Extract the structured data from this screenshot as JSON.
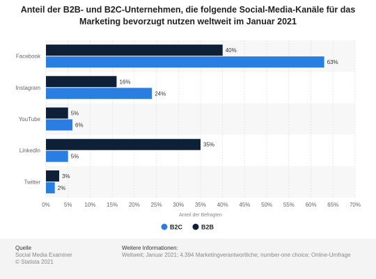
{
  "title": "Anteil der B2B- und B2C-Unternehmen, die folgende Social-Media-Kanäle für das Marketing bevorzugt nutzen weltweit im Januar 2021",
  "colors": {
    "b2c": "#2a7de1",
    "b2b": "#0e2038",
    "band": "#f7f7f7",
    "grid": "#d9d9d9",
    "axisText": "#666666"
  },
  "chart_data": {
    "type": "bar",
    "orientation": "horizontal",
    "categories": [
      "Facebook",
      "Instagram",
      "YouTube",
      "LinkedIn",
      "Twitter"
    ],
    "series": [
      {
        "name": "B2B",
        "values": [
          40,
          16,
          5,
          35,
          3
        ]
      },
      {
        "name": "B2C",
        "values": [
          63,
          24,
          6,
          5,
          2
        ]
      }
    ],
    "value_labels": {
      "B2B": [
        "40%",
        "16%",
        "5%",
        "35%",
        "3%"
      ],
      "B2C": [
        "63%",
        "24%",
        "6%",
        "5%",
        "2%"
      ]
    },
    "xlim": [
      0,
      70
    ],
    "xticks": [
      0,
      5,
      10,
      15,
      20,
      25,
      30,
      35,
      40,
      45,
      50,
      55,
      60,
      65,
      70
    ],
    "xtick_labels": [
      "0%",
      "5%",
      "10%",
      "15%",
      "20%",
      "25%",
      "30%",
      "35%",
      "40%",
      "45%",
      "50%",
      "55%",
      "60%",
      "65%",
      "70%"
    ],
    "xlabel": "Anteil der Befragten",
    "legend": {
      "position": "bottom",
      "entries": [
        "B2C",
        "B2B"
      ]
    },
    "grid": true
  },
  "footer": {
    "source_heading": "Quelle",
    "source_lines": [
      "Social Media Examiner",
      "© Statista 2021"
    ],
    "info_heading": "Weitere Informationen:",
    "info_text": "Weltweit; Januar 2021; 4.394 Marketingverantwortliche; number-one choice; Online-Umfrage"
  }
}
